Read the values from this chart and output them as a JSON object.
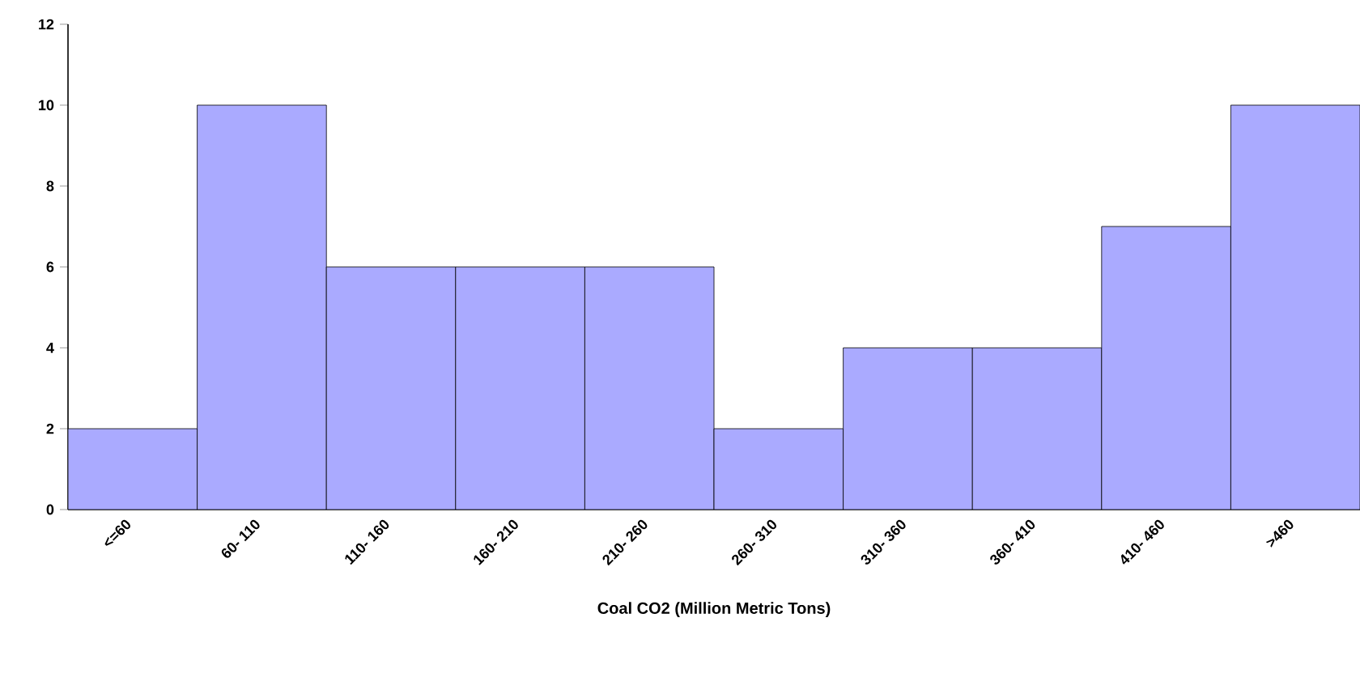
{
  "chart_data": {
    "type": "bar",
    "xlabel": "Coal CO2 (Million Metric Tons)",
    "categories": [
      "<=60",
      "60- 110",
      "110- 160",
      "160- 210",
      "210- 260",
      "260- 310",
      "310- 360",
      "360- 410",
      "410- 460",
      ">460"
    ],
    "values": [
      2,
      10,
      6,
      6,
      6,
      2,
      4,
      4,
      7,
      10
    ],
    "color": "#aaaaff",
    "ylim": [
      0,
      12
    ],
    "yticks": [
      0,
      2,
      4,
      6,
      8,
      10,
      12
    ],
    "grid": false
  }
}
